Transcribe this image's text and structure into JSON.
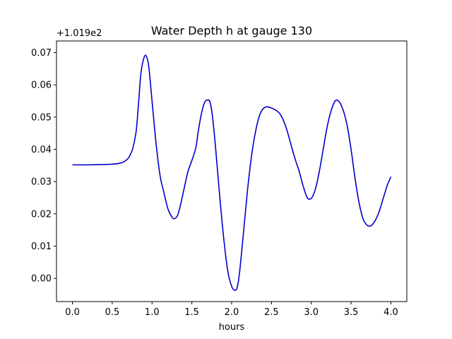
{
  "chart_data": {
    "type": "line",
    "title": "Water Depth h at gauge 130",
    "xlabel": "hours",
    "ylabel": "",
    "offset_text": "+1.019e2",
    "xlim": [
      -0.2,
      4.2
    ],
    "ylim": [
      -0.0072,
      0.0736
    ],
    "xticks": [
      0.0,
      0.5,
      1.0,
      1.5,
      2.0,
      2.5,
      3.0,
      3.5,
      4.0
    ],
    "xtick_labels": [
      "0.0",
      "0.5",
      "1.0",
      "1.5",
      "2.0",
      "2.5",
      "3.0",
      "3.5",
      "4.0"
    ],
    "yticks": [
      0.0,
      0.01,
      0.02,
      0.03,
      0.04,
      0.05,
      0.06,
      0.07
    ],
    "ytick_labels": [
      "0.00",
      "0.01",
      "0.02",
      "0.03",
      "0.04",
      "0.05",
      "0.06",
      "0.07"
    ],
    "grid": false,
    "series": [
      {
        "color": "#0000cc",
        "x": [
          0.0,
          0.2,
          0.4,
          0.5,
          0.6,
          0.65,
          0.7,
          0.73,
          0.76,
          0.8,
          0.83,
          0.86,
          0.9,
          0.93,
          0.96,
          1.0,
          1.05,
          1.1,
          1.15,
          1.2,
          1.25,
          1.28,
          1.32,
          1.36,
          1.4,
          1.45,
          1.5,
          1.55,
          1.58,
          1.62,
          1.66,
          1.7,
          1.73,
          1.76,
          1.8,
          1.85,
          1.9,
          1.95,
          2.0,
          2.04,
          2.07,
          2.1,
          2.15,
          2.2,
          2.25,
          2.3,
          2.35,
          2.4,
          2.45,
          2.5,
          2.55,
          2.6,
          2.65,
          2.7,
          2.75,
          2.8,
          2.85,
          2.9,
          2.95,
          3.0,
          3.05,
          3.1,
          3.15,
          3.2,
          3.25,
          3.3,
          3.35,
          3.4,
          3.45,
          3.5,
          3.55,
          3.6,
          3.65,
          3.7,
          3.75,
          3.8,
          3.85,
          3.9,
          3.95,
          4.0
        ],
        "y": [
          0.0352,
          0.0352,
          0.0353,
          0.0354,
          0.0357,
          0.0362,
          0.0372,
          0.0385,
          0.0405,
          0.0455,
          0.054,
          0.0635,
          0.0685,
          0.0688,
          0.0655,
          0.055,
          0.042,
          0.032,
          0.0265,
          0.0215,
          0.019,
          0.0185,
          0.0195,
          0.023,
          0.0275,
          0.033,
          0.0365,
          0.0405,
          0.0455,
          0.051,
          0.0545,
          0.0553,
          0.0545,
          0.05,
          0.04,
          0.0255,
          0.0125,
          0.0025,
          -0.0025,
          -0.0037,
          -0.0028,
          0.002,
          0.0145,
          0.0275,
          0.038,
          0.0455,
          0.0505,
          0.0527,
          0.0532,
          0.0528,
          0.0522,
          0.0512,
          0.049,
          0.0455,
          0.041,
          0.0368,
          0.033,
          0.0285,
          0.025,
          0.0248,
          0.0275,
          0.033,
          0.04,
          0.047,
          0.052,
          0.055,
          0.0548,
          0.0522,
          0.0475,
          0.04,
          0.031,
          0.0235,
          0.0185,
          0.0165,
          0.0163,
          0.0178,
          0.0205,
          0.0245,
          0.0285,
          0.0315
        ]
      }
    ]
  }
}
